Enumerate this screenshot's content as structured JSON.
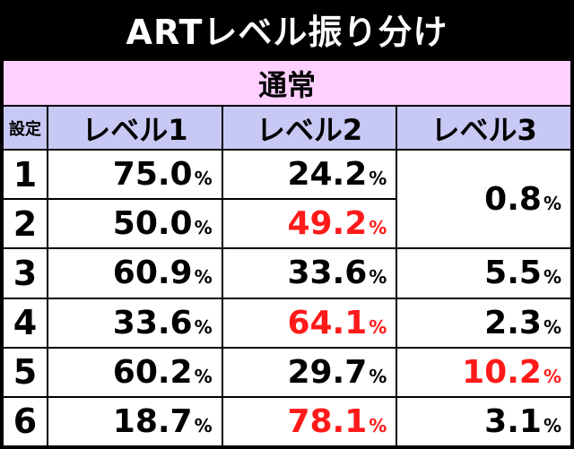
{
  "title": "ARTレベル振り分け",
  "section": "通常",
  "headers": {
    "setting": "設定",
    "level1": "レベル1",
    "level2": "レベル2",
    "level3": "レベル3"
  },
  "percent_sign": "%",
  "accent_red": "#ff1a1a",
  "rows": [
    {
      "setting": "1",
      "level1": "75.0",
      "level2": "24.2",
      "level3": "0.8"
    },
    {
      "setting": "2",
      "level1": "50.0",
      "level2": "49.2",
      "level3": "0.8"
    },
    {
      "setting": "3",
      "level1": "60.9",
      "level2": "33.6",
      "level3": "5.5"
    },
    {
      "setting": "4",
      "level1": "33.6",
      "level2": "64.1",
      "level3": "2.3"
    },
    {
      "setting": "5",
      "level1": "60.2",
      "level2": "29.7",
      "level3": "10.2"
    },
    {
      "setting": "6",
      "level1": "18.7",
      "level2": "78.1",
      "level3": "3.1"
    }
  ]
}
